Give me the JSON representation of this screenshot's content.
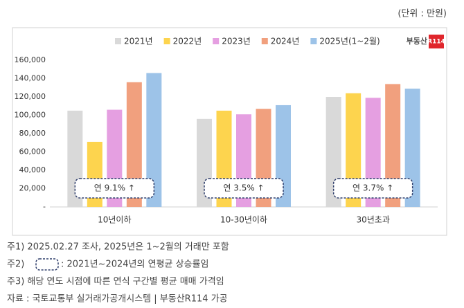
{
  "unit_note": "(단위 : 만원)",
  "logo": {
    "text": "부동산",
    "badge": "R114"
  },
  "chart_data": {
    "type": "bar",
    "categories": [
      "10년이하",
      "10-30년이하",
      "30년초과"
    ],
    "series": [
      {
        "name": "2021년",
        "color": "#d9d9d9",
        "values": [
          105000,
          96000,
          120000
        ]
      },
      {
        "name": "2022년",
        "color": "#fdd44e",
        "values": [
          71000,
          105000,
          124000
        ]
      },
      {
        "name": "2023년",
        "color": "#e59fe1",
        "values": [
          106000,
          101000,
          119000
        ]
      },
      {
        "name": "2024년",
        "color": "#f1a07e",
        "values": [
          136000,
          107000,
          134000
        ]
      },
      {
        "name": "2025년(1~2월)",
        "color": "#9dc3e8",
        "values": [
          146000,
          111000,
          129000
        ]
      }
    ],
    "annotations": [
      "연 9.1% ↑",
      "연 3.5% ↑",
      "연 3.7% ↑"
    ],
    "ylim": [
      0,
      160000
    ],
    "yticks": [
      {
        "value": 0,
        "label": "-"
      },
      {
        "value": 20000,
        "label": "20,000"
      },
      {
        "value": 40000,
        "label": "40,000"
      },
      {
        "value": 60000,
        "label": "60,000"
      },
      {
        "value": 80000,
        "label": "80,000"
      },
      {
        "value": 100000,
        "label": "100,000"
      },
      {
        "value": 120000,
        "label": "120,000"
      },
      {
        "value": 140000,
        "label": "140,000"
      },
      {
        "value": 160000,
        "label": "160,000"
      }
    ],
    "grid": false
  },
  "notes": [
    "주1) 2025.02.27 조사, 2025년은 1~2월의 거래만 포함",
    {
      "prefix": "주2)",
      "text": ": 2021년~2024년의 연평균 상승률임"
    },
    "주3) 해당 연도 시점에 따른 연식 구간별 평균 매매 가격임",
    "자료 : 국토교통부 실거래가공개시스템 | 부동산R114 가공"
  ]
}
